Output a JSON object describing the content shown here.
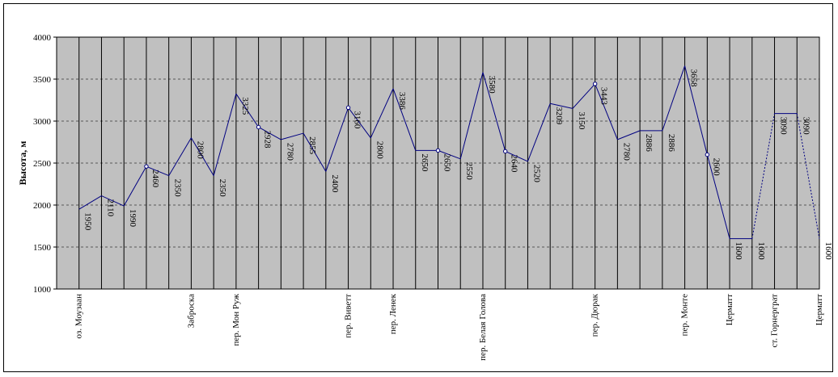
{
  "chart_data": {
    "type": "line",
    "ylabel": "Высота, м",
    "ylim": [
      1000,
      4000
    ],
    "yticks": [
      1000,
      1500,
      2000,
      2500,
      3000,
      3500,
      4000
    ],
    "grid": {
      "horizontal": "dashed",
      "vertical": "solid"
    },
    "plot_background": "#c0c0c0",
    "line_color": "#000080",
    "points": [
      {
        "y": 1950,
        "label": "1950",
        "place": "оз. Моузаан"
      },
      {
        "y": 2110,
        "label": "2110",
        "place": ""
      },
      {
        "y": 1990,
        "label": "1990",
        "place": ""
      },
      {
        "y": 2460,
        "label": "2460",
        "place": "",
        "marker": true
      },
      {
        "y": 2350,
        "label": "2350",
        "place": ""
      },
      {
        "y": 2800,
        "label": "2800",
        "place": "Заброска"
      },
      {
        "y": 2350,
        "label": "2350",
        "place": ""
      },
      {
        "y": 3325,
        "label": "3325",
        "place": "пер. Мон Руж"
      },
      {
        "y": 2928,
        "label": "2928",
        "place": "",
        "marker": true
      },
      {
        "y": 2780,
        "label": "2780",
        "place": ""
      },
      {
        "y": 2855,
        "label": "2855",
        "place": ""
      },
      {
        "y": 2400,
        "label": "2400",
        "place": ""
      },
      {
        "y": 3160,
        "label": "3160",
        "place": "пер. Виветт",
        "marker": true
      },
      {
        "y": 2800,
        "label": "2800",
        "place": ""
      },
      {
        "y": 3386,
        "label": "3386",
        "place": "пер. Ленек"
      },
      {
        "y": 2650,
        "label": "2650",
        "place": ""
      },
      {
        "y": 2650,
        "label": "2650",
        "place": "",
        "marker": true
      },
      {
        "y": 2550,
        "label": "2550",
        "place": ""
      },
      {
        "y": 3580,
        "label": "3580",
        "place": "пер. Белая Голова"
      },
      {
        "y": 2640,
        "label": "2640",
        "place": "",
        "marker": true
      },
      {
        "y": 2520,
        "label": "2520",
        "place": ""
      },
      {
        "y": 3209,
        "label": "3209",
        "place": ""
      },
      {
        "y": 3150,
        "label": "3150",
        "place": ""
      },
      {
        "y": 3443,
        "label": "3443",
        "place": "пер. Дюрак",
        "marker": true
      },
      {
        "y": 2780,
        "label": "2780",
        "place": ""
      },
      {
        "y": 2886,
        "label": "2886",
        "place": ""
      },
      {
        "y": 2886,
        "label": "2886",
        "place": ""
      },
      {
        "y": 3658,
        "label": "3658",
        "place": "пер. Монте"
      },
      {
        "y": 2600,
        "label": "2600",
        "place": "",
        "marker": true
      },
      {
        "y": 1600,
        "label": "1600",
        "place": "Церматт"
      },
      {
        "y": 1600,
        "label": "1600",
        "place": ""
      },
      {
        "y": 3090,
        "label": "3090",
        "place": "ст. Горнерграт",
        "dotted_in": true
      },
      {
        "y": 3090,
        "label": "3090",
        "place": ""
      },
      {
        "y": 1600,
        "label": "1600",
        "place": "Церматт",
        "dotted_in": true
      }
    ]
  }
}
